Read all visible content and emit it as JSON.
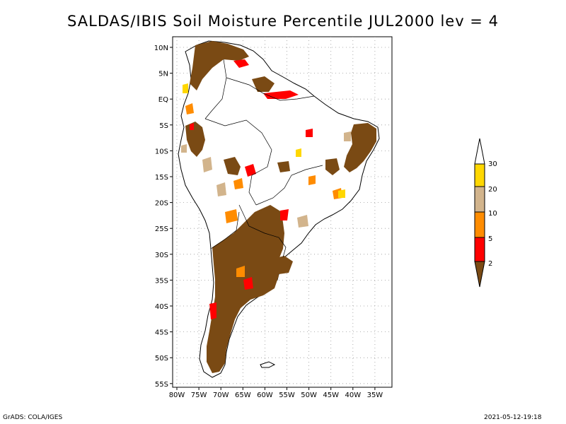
{
  "title": "SALDAS/IBIS Soil Moisture Percentile JUL2000 lev = 4",
  "footer_left": "GrADS: COLA/IGES",
  "footer_right": "2021-05-12-19:18",
  "map": {
    "lat_ticks": [
      "10N",
      "5N",
      "EQ",
      "5S",
      "10S",
      "15S",
      "20S",
      "25S",
      "30S",
      "35S",
      "40S",
      "45S",
      "50S",
      "55S"
    ],
    "lon_ticks": [
      "80W",
      "75W",
      "70W",
      "65W",
      "60W",
      "55W",
      "50W",
      "45W",
      "40W",
      "35W"
    ],
    "land_outline": "black",
    "gridlines": "dotted"
  },
  "colorbar": {
    "labels": [
      "2",
      "5",
      "10",
      "20",
      "30"
    ],
    "bins": [
      {
        "range": "<2",
        "color": "#7a4a14"
      },
      {
        "range": "2-5",
        "color": "#ff0000"
      },
      {
        "range": "5-10",
        "color": "#ff8c00"
      },
      {
        "range": "10-20",
        "color": "#d2b48c"
      },
      {
        "range": "20-30",
        "color": "#ffd700"
      },
      {
        "range": ">30",
        "color": "#ffffff"
      }
    ]
  }
}
